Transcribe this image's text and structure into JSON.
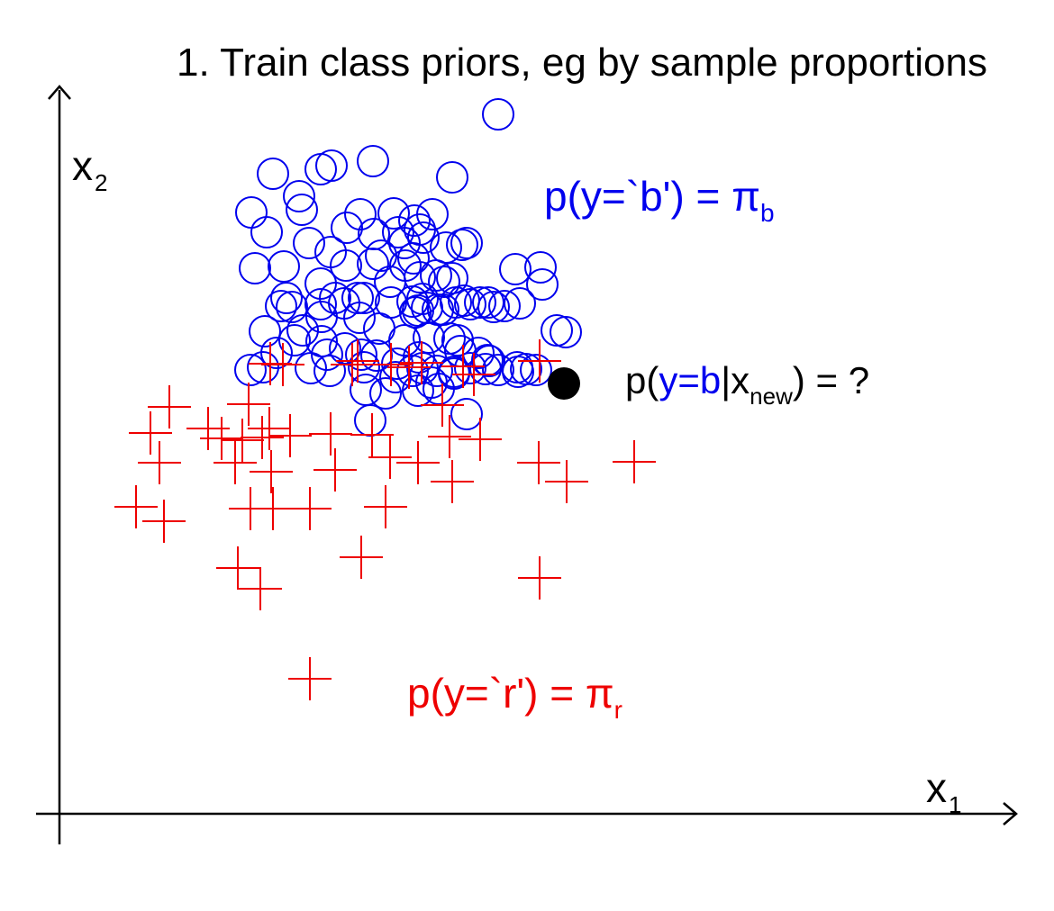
{
  "title": "1. Train class priors, eg by sample proportions",
  "colors": {
    "blue": "#0000ee",
    "red": "#ee0000",
    "black": "#000000",
    "axis": "#000000"
  },
  "axes": {
    "x_label": "x",
    "x_sub": "1",
    "y_label": "x",
    "y_sub": "2"
  },
  "prior_blue": {
    "text": "p(y=`b') = π",
    "sub": "b"
  },
  "prior_red": {
    "text": "p(y=`r') = π",
    "sub": "r"
  },
  "query": {
    "prefix": "p(",
    "class_text": "y=b",
    "cond": "|x",
    "sub": "new",
    "suffix": ") = ?"
  },
  "chart_data": {
    "type": "scatter",
    "xlabel": "x1",
    "ylabel": "x2",
    "xlim": [
      0,
      1000
    ],
    "ylim": [
      0,
      800
    ],
    "series": [
      {
        "name": "b",
        "marker": "circle",
        "color": "#0000ee",
        "points": [
          [
            487,
            777
          ],
          [
            290,
            716
          ],
          [
            302,
            720
          ],
          [
            348,
            725
          ],
          [
            237,
            711
          ],
          [
            436,
            707
          ],
          [
            213,
            668
          ],
          [
            266,
            686
          ],
          [
            269,
            671
          ],
          [
            319,
            651
          ],
          [
            334,
            666
          ],
          [
            371,
            667
          ],
          [
            376,
            646
          ],
          [
            394,
            659
          ],
          [
            400,
            649
          ],
          [
            414,
            666
          ],
          [
            230,
            646
          ],
          [
            277,
            634
          ],
          [
            301,
            624
          ],
          [
            349,
            644
          ],
          [
            357,
            620
          ],
          [
            383,
            634
          ],
          [
            393,
            617
          ],
          [
            404,
            640
          ],
          [
            429,
            629
          ],
          [
            452,
            634
          ],
          [
            447,
            632
          ],
          [
            217,
            606
          ],
          [
            249,
            608
          ],
          [
            318,
            609
          ],
          [
            348,
            611
          ],
          [
            290,
            589
          ],
          [
            367,
            591
          ],
          [
            384,
            609
          ],
          [
            400,
            596
          ],
          [
            418,
            598
          ],
          [
            436,
            595
          ],
          [
            506,
            605
          ],
          [
            534,
            607
          ],
          [
            536,
            588
          ],
          [
            252,
            573
          ],
          [
            258,
            563
          ],
          [
            290,
            566
          ],
          [
            306,
            573
          ],
          [
            316,
            567
          ],
          [
            331,
            573
          ],
          [
            338,
            573
          ],
          [
            368,
            568
          ],
          [
            392,
            569
          ],
          [
            403,
            572
          ],
          [
            426,
            560
          ],
          [
            408,
            562
          ],
          [
            420,
            560
          ],
          [
            440,
            568
          ],
          [
            449,
            570
          ],
          [
            456,
            566
          ],
          [
            467,
            568
          ],
          [
            476,
            568
          ],
          [
            482,
            563
          ],
          [
            494,
            564
          ],
          [
            511,
            567
          ],
          [
            246,
            564
          ],
          [
            291,
            552
          ],
          [
            333,
            551
          ],
          [
            427,
            591
          ],
          [
            395,
            557
          ],
          [
            228,
            536
          ],
          [
            261,
            526
          ],
          [
            270,
            537
          ],
          [
            291,
            525
          ],
          [
            317,
            517
          ],
          [
            355,
            539
          ],
          [
            383,
            526
          ],
          [
            398,
            559
          ],
          [
            410,
            529
          ],
          [
            433,
            528
          ],
          [
            442,
            526
          ],
          [
            552,
            537
          ],
          [
            562,
            535
          ],
          [
            241,
            512
          ],
          [
            297,
            510
          ],
          [
            335,
            510
          ],
          [
            352,
            509
          ],
          [
            399,
            507
          ],
          [
            445,
            514
          ],
          [
            465,
            512
          ],
          [
            475,
            504
          ],
          [
            487,
            493
          ],
          [
            212,
            493
          ],
          [
            226,
            496
          ],
          [
            279,
            495
          ],
          [
            300,
            492
          ],
          [
            338,
            496
          ],
          [
            373,
            485
          ],
          [
            392,
            492
          ],
          [
            375,
            500
          ],
          [
            403,
            495
          ],
          [
            413,
            479
          ],
          [
            419,
            492
          ],
          [
            438,
            491
          ],
          [
            456,
            495
          ],
          [
            473,
            494
          ],
          [
            509,
            491
          ],
          [
            518,
            494
          ],
          [
            529,
            493
          ],
          [
            340,
            471
          ],
          [
            362,
            467
          ],
          [
            398,
            470
          ],
          [
            421,
            472
          ],
          [
            438,
            489
          ],
          [
            345,
            437
          ],
          [
            452,
            444
          ],
          [
            477,
            503
          ],
          [
            508,
            496
          ]
        ]
      },
      {
        "name": "r",
        "marker": "plus",
        "color": "#ee0000",
        "points": [
          [
            234,
            500
          ],
          [
            248,
            499
          ],
          [
            325,
            499
          ],
          [
            331,
            503
          ],
          [
            368,
            499
          ],
          [
            388,
            496
          ],
          [
            402,
            501
          ],
          [
            448,
            497
          ],
          [
            460,
            488
          ],
          [
            533,
            503
          ],
          [
            122,
            452
          ],
          [
            210,
            455
          ],
          [
            425,
            454
          ],
          [
            101,
            423
          ],
          [
            165,
            428
          ],
          [
            180,
            417
          ],
          [
            203,
            415
          ],
          [
            225,
            418
          ],
          [
            233,
            428
          ],
          [
            256,
            420
          ],
          [
            301,
            422
          ],
          [
            347,
            421
          ],
          [
            433,
            419
          ],
          [
            467,
            416
          ],
          [
            111,
            390
          ],
          [
            195,
            390
          ],
          [
            235,
            380
          ],
          [
            306,
            382
          ],
          [
            367,
            396
          ],
          [
            398,
            390
          ],
          [
            532,
            390
          ],
          [
            638,
            391
          ],
          [
            436,
            369
          ],
          [
            563,
            369
          ],
          [
            85,
            341
          ],
          [
            116,
            325
          ],
          [
            212,
            339
          ],
          [
            278,
            339
          ],
          [
            237,
            339
          ],
          [
            362,
            341
          ],
          [
            198,
            273
          ],
          [
            223,
            250
          ],
          [
            335,
            285
          ],
          [
            533,
            262
          ],
          [
            278,
            150
          ]
        ]
      },
      {
        "name": "x_new",
        "marker": "dot",
        "color": "#000000",
        "points": [
          [
            560,
            478
          ]
        ]
      }
    ]
  }
}
